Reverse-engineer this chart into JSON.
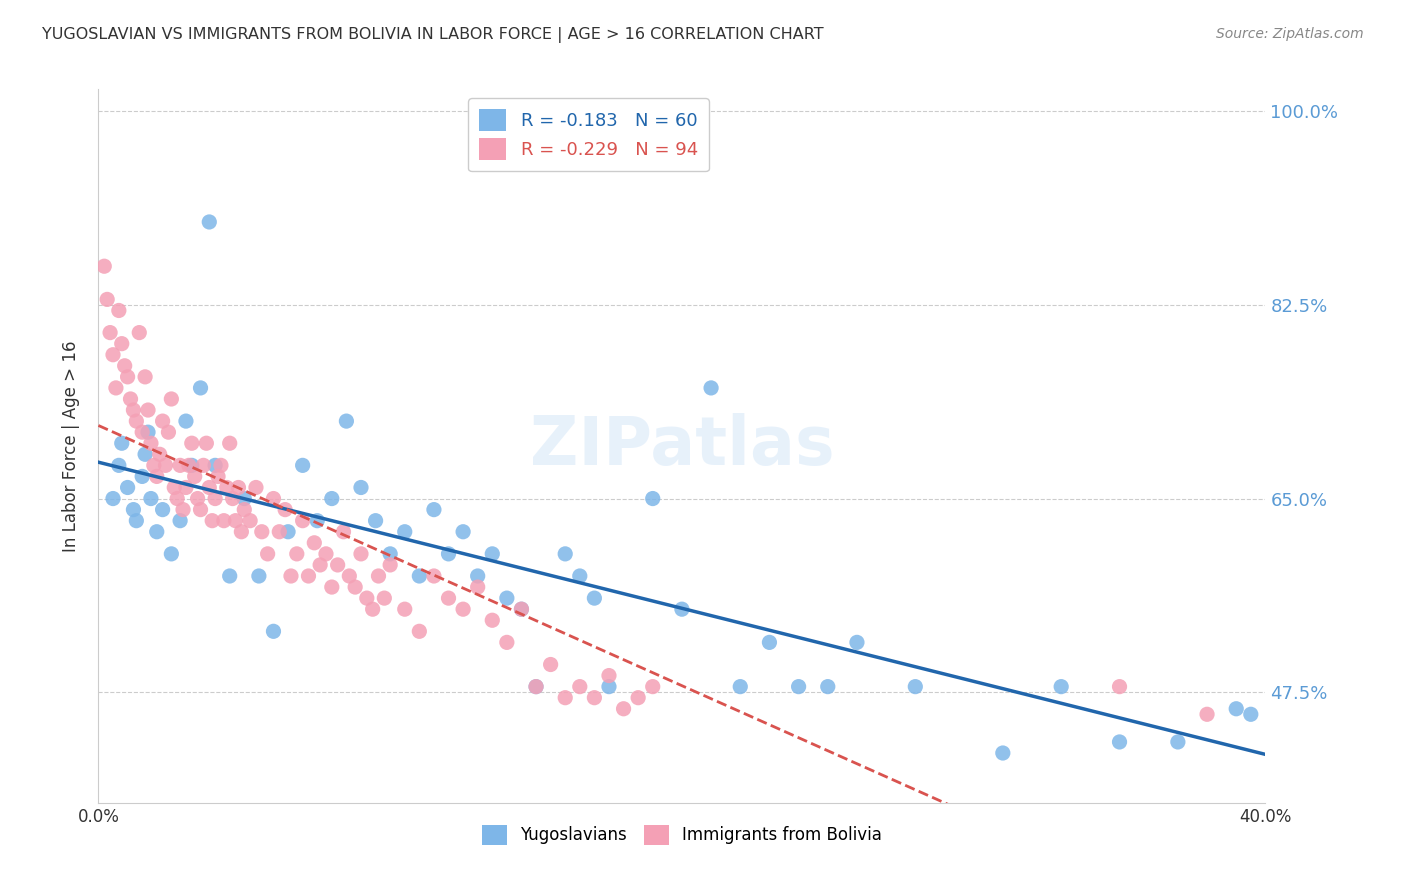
{
  "title": "YUGOSLAVIAN VS IMMIGRANTS FROM BOLIVIA IN LABOR FORCE | AGE > 16 CORRELATION CHART",
  "source": "Source: ZipAtlas.com",
  "ylabel": "In Labor Force | Age > 16",
  "xlabel": "",
  "xlim": [
    0.0,
    0.4
  ],
  "ylim": [
    0.375,
    1.02
  ],
  "yticks": [
    0.475,
    0.65,
    0.825,
    1.0
  ],
  "ytick_labels": [
    "47.5%",
    "65.0%",
    "82.5%",
    "100.0%"
  ],
  "xticks": [
    0.0,
    0.05,
    0.1,
    0.15,
    0.2,
    0.25,
    0.3,
    0.35,
    0.4
  ],
  "xtick_labels": [
    "0.0%",
    "",
    "",
    "",
    "",
    "",
    "",
    "",
    "40.0%"
  ],
  "blue_R": -0.183,
  "blue_N": 60,
  "pink_R": -0.229,
  "pink_N": 94,
  "blue_color": "#7EB6E8",
  "pink_color": "#F4A0B5",
  "blue_line_color": "#2166ac",
  "pink_line_color": "#d9534f",
  "watermark": "ZIPatlas",
  "legend_label_blue": "Yugoslavians",
  "legend_label_pink": "Immigrants from Bolivia",
  "blue_scatter_x": [
    0.005,
    0.007,
    0.008,
    0.01,
    0.012,
    0.013,
    0.015,
    0.016,
    0.017,
    0.018,
    0.02,
    0.022,
    0.025,
    0.028,
    0.03,
    0.032,
    0.035,
    0.038,
    0.04,
    0.045,
    0.05,
    0.055,
    0.06,
    0.065,
    0.07,
    0.075,
    0.08,
    0.085,
    0.09,
    0.095,
    0.1,
    0.105,
    0.11,
    0.115,
    0.12,
    0.125,
    0.13,
    0.135,
    0.14,
    0.145,
    0.15,
    0.16,
    0.165,
    0.17,
    0.175,
    0.19,
    0.2,
    0.21,
    0.22,
    0.23,
    0.24,
    0.25,
    0.26,
    0.28,
    0.31,
    0.33,
    0.35,
    0.37,
    0.39,
    0.395
  ],
  "blue_scatter_y": [
    0.65,
    0.68,
    0.7,
    0.66,
    0.64,
    0.63,
    0.67,
    0.69,
    0.71,
    0.65,
    0.62,
    0.64,
    0.6,
    0.63,
    0.72,
    0.68,
    0.75,
    0.9,
    0.68,
    0.58,
    0.65,
    0.58,
    0.53,
    0.62,
    0.68,
    0.63,
    0.65,
    0.72,
    0.66,
    0.63,
    0.6,
    0.62,
    0.58,
    0.64,
    0.6,
    0.62,
    0.58,
    0.6,
    0.56,
    0.55,
    0.48,
    0.6,
    0.58,
    0.56,
    0.48,
    0.65,
    0.55,
    0.75,
    0.48,
    0.52,
    0.48,
    0.48,
    0.52,
    0.48,
    0.42,
    0.48,
    0.43,
    0.43,
    0.46,
    0.455
  ],
  "pink_scatter_x": [
    0.002,
    0.003,
    0.004,
    0.005,
    0.006,
    0.007,
    0.008,
    0.009,
    0.01,
    0.011,
    0.012,
    0.013,
    0.014,
    0.015,
    0.016,
    0.017,
    0.018,
    0.019,
    0.02,
    0.021,
    0.022,
    0.023,
    0.024,
    0.025,
    0.026,
    0.027,
    0.028,
    0.029,
    0.03,
    0.031,
    0.032,
    0.033,
    0.034,
    0.035,
    0.036,
    0.037,
    0.038,
    0.039,
    0.04,
    0.041,
    0.042,
    0.043,
    0.044,
    0.045,
    0.046,
    0.047,
    0.048,
    0.049,
    0.05,
    0.052,
    0.054,
    0.056,
    0.058,
    0.06,
    0.062,
    0.064,
    0.066,
    0.068,
    0.07,
    0.072,
    0.074,
    0.076,
    0.078,
    0.08,
    0.082,
    0.084,
    0.086,
    0.088,
    0.09,
    0.092,
    0.094,
    0.096,
    0.098,
    0.1,
    0.105,
    0.11,
    0.115,
    0.12,
    0.125,
    0.13,
    0.135,
    0.14,
    0.145,
    0.15,
    0.155,
    0.16,
    0.165,
    0.17,
    0.175,
    0.18,
    0.185,
    0.19,
    0.35,
    0.38
  ],
  "pink_scatter_y": [
    0.86,
    0.83,
    0.8,
    0.78,
    0.75,
    0.82,
    0.79,
    0.77,
    0.76,
    0.74,
    0.73,
    0.72,
    0.8,
    0.71,
    0.76,
    0.73,
    0.7,
    0.68,
    0.67,
    0.69,
    0.72,
    0.68,
    0.71,
    0.74,
    0.66,
    0.65,
    0.68,
    0.64,
    0.66,
    0.68,
    0.7,
    0.67,
    0.65,
    0.64,
    0.68,
    0.7,
    0.66,
    0.63,
    0.65,
    0.67,
    0.68,
    0.63,
    0.66,
    0.7,
    0.65,
    0.63,
    0.66,
    0.62,
    0.64,
    0.63,
    0.66,
    0.62,
    0.6,
    0.65,
    0.62,
    0.64,
    0.58,
    0.6,
    0.63,
    0.58,
    0.61,
    0.59,
    0.6,
    0.57,
    0.59,
    0.62,
    0.58,
    0.57,
    0.6,
    0.56,
    0.55,
    0.58,
    0.56,
    0.59,
    0.55,
    0.53,
    0.58,
    0.56,
    0.55,
    0.57,
    0.54,
    0.52,
    0.55,
    0.48,
    0.5,
    0.47,
    0.48,
    0.47,
    0.49,
    0.46,
    0.47,
    0.48,
    0.48,
    0.455
  ]
}
